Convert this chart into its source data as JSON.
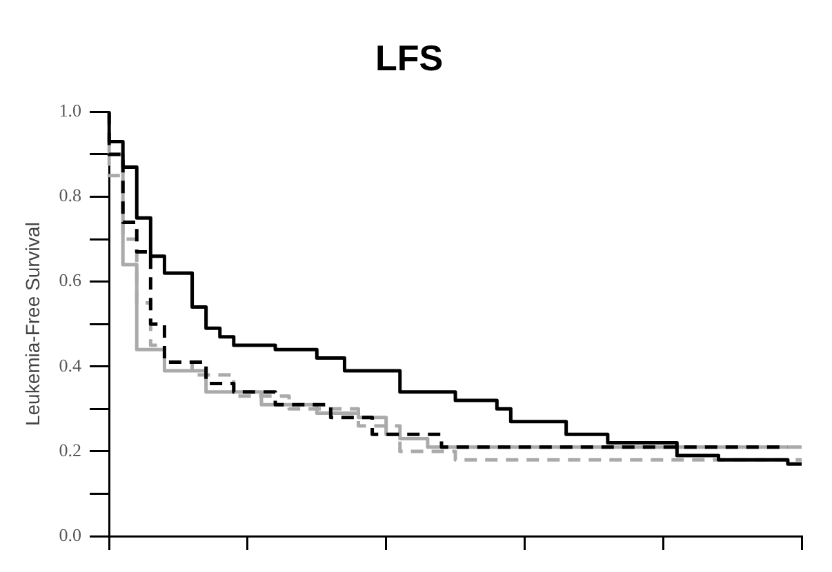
{
  "chart_data": {
    "type": "step",
    "title": "LFS",
    "ylabel": "Leukemia-Free Survival",
    "categories": [
      null,
      null,
      null,
      null,
      null,
      null,
      null,
      null,
      null,
      null,
      null,
      null,
      null,
      null,
      null,
      null,
      null,
      null,
      null,
      null,
      null,
      null,
      null,
      null,
      null,
      null,
      null,
      null,
      null,
      null,
      null,
      null,
      null,
      null,
      null,
      null,
      null,
      null,
      null,
      null,
      null,
      null,
      null,
      null,
      null,
      null,
      null,
      null,
      null,
      null,
      null
    ],
    "ylim": [
      0,
      1
    ],
    "yticks": [
      {
        "value": 0,
        "label": "0.0"
      },
      {
        "value": 0.1,
        "label": null
      },
      {
        "value": 0.2,
        "label": "0.2"
      },
      {
        "value": 0.3,
        "label": null
      },
      {
        "value": 0.4,
        "label": "0.4"
      },
      {
        "value": 0.5,
        "label": null
      },
      {
        "value": 0.6,
        "label": "0.6"
      },
      {
        "value": 0.7,
        "label": null
      },
      {
        "value": 0.8,
        "label": "0.8"
      },
      {
        "value": 0.9,
        "label": null
      },
      {
        "value": 1,
        "label": "1.0"
      }
    ],
    "tick_labels": "y",
    "series": [
      {
        "color": "#000000",
        "line_style": "solid",
        "values": [
          1.0,
          0.93,
          0.87,
          0.75,
          0.66,
          0.62,
          0.62,
          0.54,
          0.49,
          0.47,
          0.45,
          0.45,
          0.45,
          0.44,
          0.44,
          0.44,
          0.42,
          0.42,
          0.39,
          0.39,
          0.39,
          0.39,
          0.34,
          0.34,
          0.34,
          0.34,
          0.32,
          0.32,
          0.32,
          0.3,
          0.27,
          0.27,
          0.27,
          0.27,
          0.24,
          0.24,
          0.24,
          0.22,
          0.22,
          0.22,
          0.22,
          0.22,
          0.19,
          0.19,
          0.19,
          0.18,
          0.18,
          0.18,
          0.18,
          0.18,
          0.17
        ]
      },
      {
        "color": "#000000",
        "line_style": "dashed",
        "values": [
          1.0,
          0.9,
          0.74,
          0.67,
          0.5,
          0.41,
          0.41,
          0.41,
          0.36,
          0.36,
          0.34,
          0.34,
          0.34,
          0.31,
          0.31,
          0.31,
          0.31,
          0.28,
          0.28,
          0.28,
          0.24,
          0.24,
          0.24,
          0.24,
          0.24,
          0.21,
          0.21,
          0.21,
          0.21,
          0.21,
          0.21,
          0.21,
          0.21,
          0.21,
          0.21,
          0.21,
          0.21,
          0.21,
          0.21,
          0.21,
          0.21,
          0.21,
          0.21,
          0.21,
          0.21,
          0.21,
          0.21,
          0.21,
          0.21,
          0.21,
          null
        ]
      },
      {
        "color": "#aaaaaa",
        "line_style": "solid",
        "values": [
          1.0,
          0.9,
          0.64,
          0.44,
          0.44,
          0.39,
          0.39,
          0.39,
          0.34,
          0.34,
          0.34,
          0.34,
          0.31,
          0.31,
          0.31,
          0.31,
          0.29,
          0.29,
          0.29,
          0.28,
          0.28,
          0.24,
          0.23,
          0.23,
          0.21,
          0.21,
          0.21,
          0.21,
          0.21,
          0.21,
          0.21,
          0.21,
          0.21,
          0.21,
          0.21,
          0.21,
          0.21,
          0.21,
          0.21,
          0.21,
          0.21,
          0.21,
          0.21,
          0.21,
          0.21,
          0.21,
          0.21,
          0.21,
          0.21,
          0.21,
          0.21
        ]
      },
      {
        "color": "#aaaaaa",
        "line_style": "dashed",
        "values": [
          1.0,
          0.85,
          0.7,
          0.55,
          0.45,
          0.41,
          0.41,
          0.38,
          0.38,
          0.38,
          0.33,
          0.33,
          0.33,
          0.33,
          0.3,
          0.3,
          0.3,
          0.3,
          0.3,
          0.26,
          0.26,
          0.26,
          0.2,
          0.2,
          0.2,
          0.2,
          0.18,
          0.18,
          0.18,
          0.18,
          0.18,
          0.18,
          0.18,
          0.18,
          0.18,
          0.18,
          0.18,
          0.18,
          0.18,
          0.18,
          0.18,
          0.18,
          0.18,
          0.18,
          0.18,
          0.18,
          0.18,
          0.18,
          0.18,
          0.18,
          0.18
        ]
      }
    ]
  }
}
